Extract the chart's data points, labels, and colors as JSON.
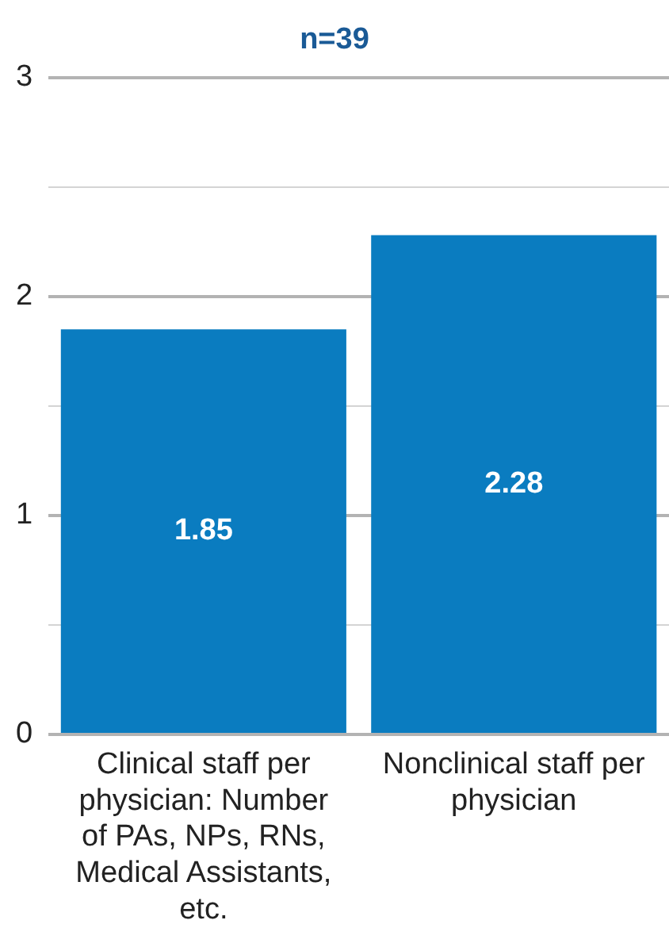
{
  "chart_data": {
    "type": "bar",
    "title": "n=39",
    "categories": [
      "Clinical staff per physician: Number of PAs, NPs, RNs, Medical Assistants, etc.",
      "Nonclinical staff per physician"
    ],
    "values": [
      1.85,
      2.28
    ],
    "color": "#0a7cc0",
    "ylim": [
      0,
      3
    ],
    "yticks": [
      0,
      {
        "value": 0.5,
        "label": null
      },
      1,
      {
        "value": 1.5,
        "label": null
      },
      2,
      {
        "value": 2.5,
        "label": null
      },
      3
    ],
    "grid": "y",
    "data_labels": true
  }
}
